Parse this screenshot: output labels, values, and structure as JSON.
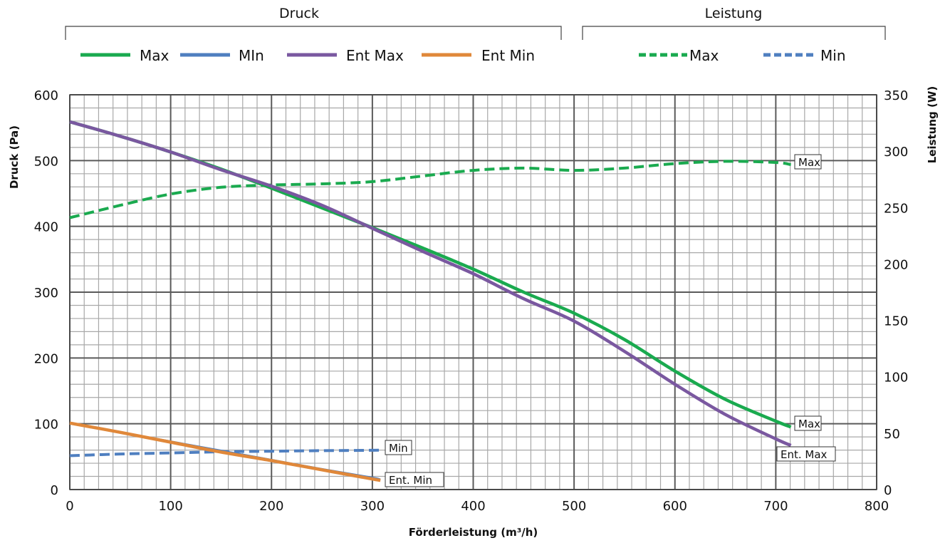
{
  "chart_data": {
    "type": "line",
    "xlabel": "Förderleistung (m³/h)",
    "ylabel": "Druck (Pa)",
    "y2label": "Leistung (W)",
    "xlim": [
      0,
      800
    ],
    "ylim": [
      0,
      600
    ],
    "y2lim": [
      0,
      350
    ],
    "x_ticks": [
      0,
      100,
      200,
      300,
      400,
      500,
      600,
      700,
      800
    ],
    "y_ticks": [
      0,
      100,
      200,
      300,
      400,
      500,
      600
    ],
    "y2_ticks": [
      0,
      50,
      100,
      150,
      200,
      250,
      300,
      350
    ],
    "grid": true,
    "legend_groups": [
      {
        "title": "Druck",
        "entries": [
          "Max",
          "MIn",
          "Ent Max",
          "Ent Min"
        ]
      },
      {
        "title": "Leistung",
        "entries": [
          "Max",
          "Min"
        ]
      }
    ],
    "series": [
      {
        "name": "Max",
        "legend_group": "Druck",
        "axis": "left",
        "color": "#1aaa4f",
        "style": "solid",
        "x": [
          0,
          50,
          100,
          150,
          200,
          250,
          300,
          350,
          400,
          450,
          500,
          550,
          600,
          650,
          700,
          715
        ],
        "y": [
          559,
          537,
          513,
          487,
          458,
          428,
          398,
          367,
          335,
          300,
          268,
          228,
          180,
          137,
          104,
          95
        ],
        "end_label": "Max"
      },
      {
        "name": "MIn",
        "legend_group": "Druck",
        "axis": "left",
        "color": "#4f7fc0",
        "style": "solid",
        "x": [
          0,
          50,
          100,
          150,
          200,
          250,
          300,
          308
        ],
        "y": [
          101,
          87,
          73,
          59,
          45,
          31,
          18,
          15
        ]
      },
      {
        "name": "Ent Max",
        "legend_group": "Druck",
        "axis": "left",
        "color": "#7a58a0",
        "style": "solid",
        "x": [
          0,
          50,
          100,
          150,
          200,
          250,
          300,
          350,
          400,
          450,
          500,
          550,
          600,
          650,
          700,
          715
        ],
        "y": [
          559,
          537,
          513,
          486,
          461,
          432,
          397,
          362,
          328,
          290,
          256,
          210,
          160,
          114,
          77,
          67
        ],
        "end_label": "Ent. Max"
      },
      {
        "name": "Ent Min",
        "legend_group": "Druck",
        "axis": "left",
        "color": "#e0883a",
        "style": "solid",
        "x": [
          0,
          50,
          100,
          150,
          200,
          250,
          300,
          308
        ],
        "y": [
          101,
          87,
          72,
          57,
          44,
          30,
          16,
          14
        ],
        "end_label": "Ent. Min"
      },
      {
        "name": "Max",
        "legend_group": "Leistung",
        "axis": "right",
        "color": "#1aaa4f",
        "style": "dashed",
        "x": [
          0,
          50,
          100,
          150,
          200,
          250,
          300,
          350,
          400,
          450,
          500,
          550,
          600,
          650,
          700,
          715
        ],
        "y": [
          241,
          252,
          262,
          268,
          270,
          271,
          273,
          278,
          283,
          285,
          283,
          285,
          289,
          291,
          290,
          288
        ],
        "end_label": "Max"
      },
      {
        "name": "Min",
        "legend_group": "Leistung",
        "axis": "right",
        "color": "#4f7fc0",
        "style": "dashed",
        "x": [
          0,
          50,
          100,
          150,
          200,
          250,
          300,
          310
        ],
        "y": [
          30,
          31.5,
          32.5,
          33.5,
          34,
          34.5,
          34.8,
          35
        ],
        "end_label": "Min"
      }
    ]
  }
}
